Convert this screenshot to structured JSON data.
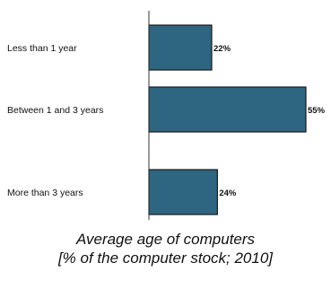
{
  "chart_data": {
    "type": "bar",
    "orientation": "horizontal",
    "categories": [
      "Less than 1 year",
      "Between 1 and 3 years",
      "More than 3 years"
    ],
    "values": [
      22,
      55,
      24
    ],
    "value_labels": [
      "22%",
      "55%",
      "24%"
    ],
    "title": "Average age of computers",
    "subtitle": "[% of the computer stock; 2010]",
    "xlim": [
      0,
      55
    ],
    "grid": false,
    "legend": "none",
    "colors": {
      "bar": "#2e6580",
      "bar_edge": "#1a1a1a",
      "axis": "#333333"
    }
  }
}
